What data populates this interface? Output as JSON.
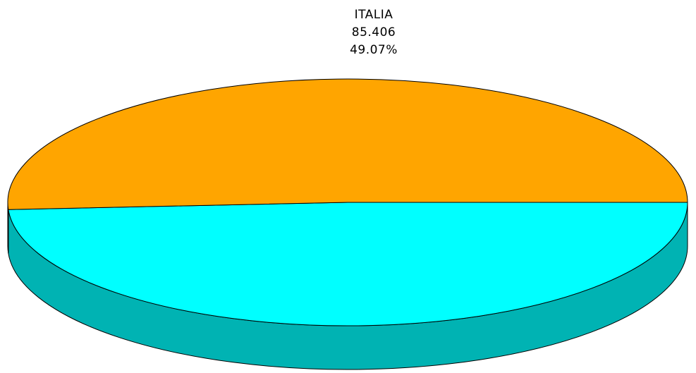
{
  "chart_data": {
    "type": "pie",
    "style": "3d",
    "legend": "none",
    "slices": [
      {
        "label": "ITALIA",
        "value": 85.406,
        "percent": "49.07%",
        "color": "#00ffff",
        "side_color": "#00b3b3"
      },
      {
        "label": "",
        "value": 88.645,
        "percent": "50.93%",
        "color": "#ffa500",
        "side_color": "#b07000"
      }
    ],
    "labels": [
      {
        "name": "ITALIA",
        "value_text": "85.406",
        "percent_text": "49.07%"
      }
    ]
  }
}
